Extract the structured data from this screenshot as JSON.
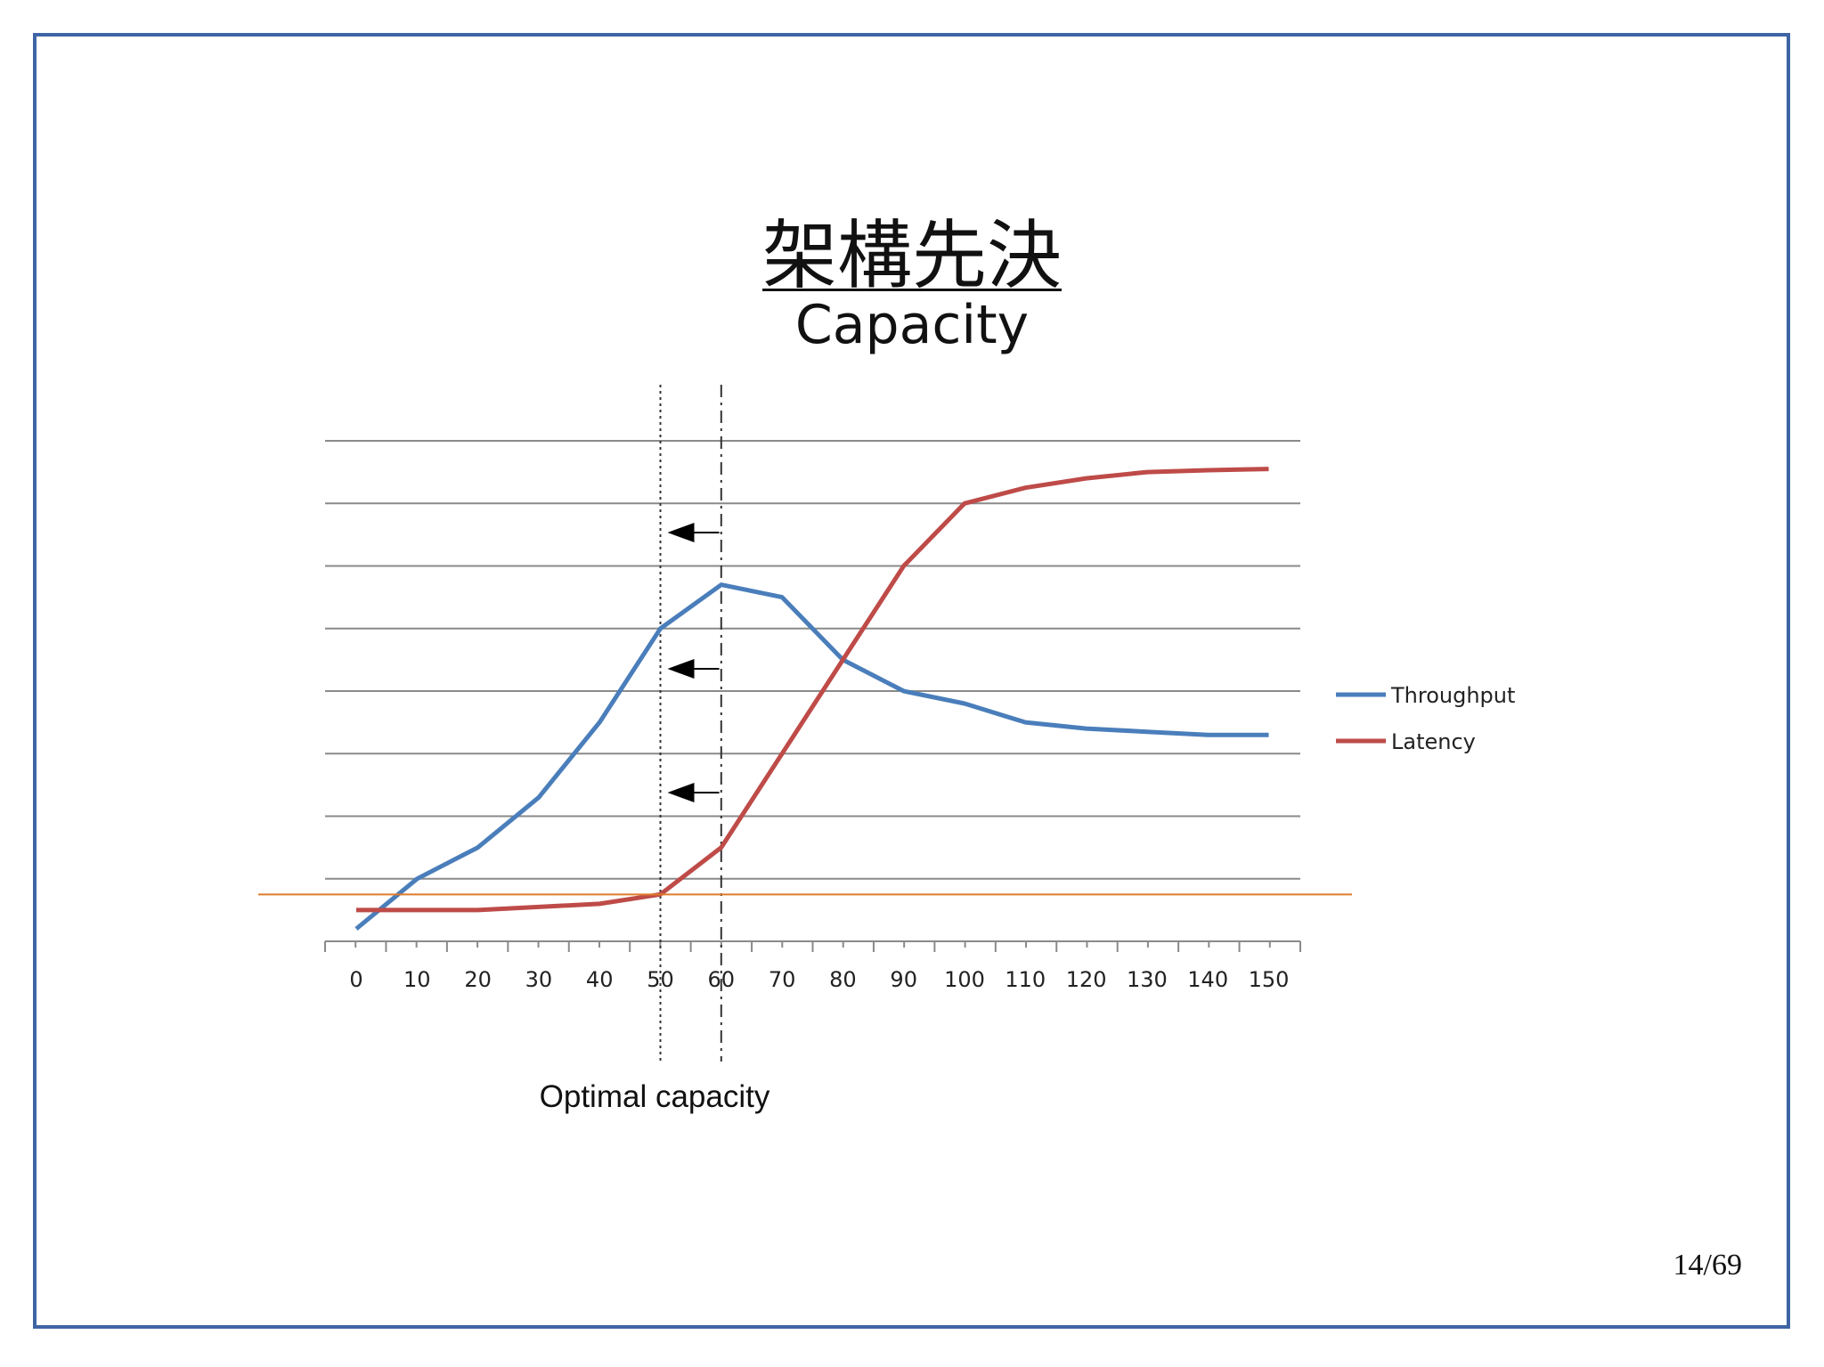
{
  "slide": {
    "title": "架構先決",
    "subtitle": "Capacity",
    "page": "14/69"
  },
  "chart_data": {
    "type": "line",
    "x": [
      0,
      10,
      20,
      30,
      40,
      50,
      60,
      70,
      80,
      90,
      100,
      110,
      120,
      130,
      140,
      150
    ],
    "series": [
      {
        "name": "Throughput",
        "color": "#4a7ebb",
        "values": [
          0.2,
          1.0,
          1.5,
          2.3,
          3.5,
          5.0,
          5.7,
          5.5,
          4.5,
          4.0,
          3.8,
          3.5,
          3.4,
          3.35,
          3.3,
          3.3
        ]
      },
      {
        "name": "Latency",
        "color": "#be4b48",
        "values": [
          0.5,
          0.5,
          0.5,
          0.55,
          0.6,
          0.75,
          1.5,
          3.0,
          4.5,
          6.0,
          7.0,
          7.25,
          7.4,
          7.5,
          7.53,
          7.55
        ]
      }
    ],
    "xticks": [
      "0",
      "10",
      "20",
      "30",
      "40",
      "50",
      "60",
      "70",
      "80",
      "90",
      "100",
      "110",
      "120",
      "130",
      "140",
      "150"
    ],
    "ylim": [
      0,
      8
    ],
    "grid": true,
    "legend": "right",
    "reference_line": {
      "y": 0.75,
      "color": "#e07b2a"
    },
    "vertical_markers": [
      {
        "x": 50,
        "style": "dotted"
      },
      {
        "x": 60,
        "style": "dash-dot"
      }
    ],
    "annotation": "Optimal capacity"
  }
}
